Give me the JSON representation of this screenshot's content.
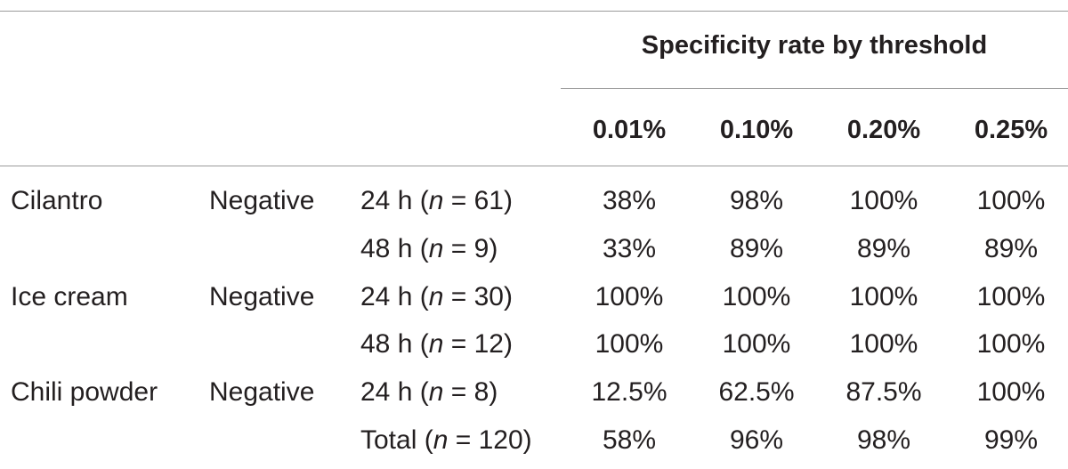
{
  "table": {
    "group_header": "Specificity rate by threshold",
    "thresholds": [
      "0.01%",
      "0.10%",
      "0.20%",
      "0.25%"
    ],
    "rows": [
      {
        "food": "Cilantro",
        "result": "Negative",
        "time": "24 h",
        "n": "61",
        "values": [
          "38%",
          "98%",
          "100%",
          "100%"
        ]
      },
      {
        "food": "",
        "result": "",
        "time": "48 h",
        "n": "9",
        "values": [
          "33%",
          "89%",
          "89%",
          "89%"
        ]
      },
      {
        "food": "Ice cream",
        "result": "Negative",
        "time": "24 h",
        "n": "30",
        "values": [
          "100%",
          "100%",
          "100%",
          "100%"
        ]
      },
      {
        "food": "",
        "result": "",
        "time": "48 h",
        "n": "12",
        "values": [
          "100%",
          "100%",
          "100%",
          "100%"
        ]
      },
      {
        "food": "Chili powder",
        "result": "Negative",
        "time": "24 h",
        "n": "8",
        "values": [
          "12.5%",
          "62.5%",
          "87.5%",
          "100%"
        ]
      },
      {
        "food": "",
        "result": "",
        "time": "Total",
        "n": "120",
        "values": [
          "58%",
          "96%",
          "98%",
          "99%"
        ]
      }
    ],
    "n_symbol": "n",
    "equals": "="
  }
}
